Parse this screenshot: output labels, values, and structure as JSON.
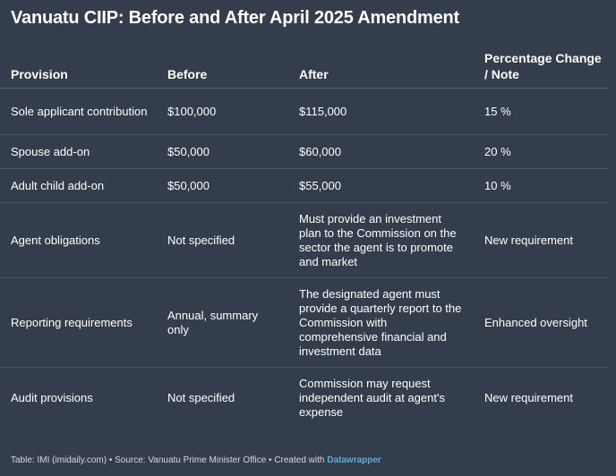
{
  "title": "Vanuatu CIIP: Before and After April 2025 Amendment",
  "columns": [
    "Provision",
    "Before",
    "After",
    "Percentage Change / Note"
  ],
  "rows": [
    [
      "Sole applicant contribution",
      "$100,000",
      "$115,000",
      "15 %"
    ],
    [
      "Spouse add-on",
      "$50,000",
      "$60,000",
      "20 %"
    ],
    [
      "Adult child add-on",
      "$50,000",
      "$55,000",
      "10 %"
    ],
    [
      "Agent obligations",
      "Not specified",
      "Must provide an investment plan to the Commission on the sector the agent is to promote and market",
      "New requirement"
    ],
    [
      "Reporting requirements",
      "Annual, summary only",
      "The designated agent must provide a quarterly report to the Commission with comprehensive financial and investment data",
      "Enhanced oversight"
    ],
    [
      "Audit provisions",
      "Not specified",
      "Commission may request independent audit at agent's expense",
      "New requirement"
    ]
  ],
  "footer": {
    "text": "Table: IMI (imidaily.com) • Source: Vanuatu Prime Minister Office • Created with ",
    "link": "Datawrapper"
  },
  "colors": {
    "background": "#333d4c",
    "text": "#ffffff",
    "link": "#5fa8d9"
  }
}
